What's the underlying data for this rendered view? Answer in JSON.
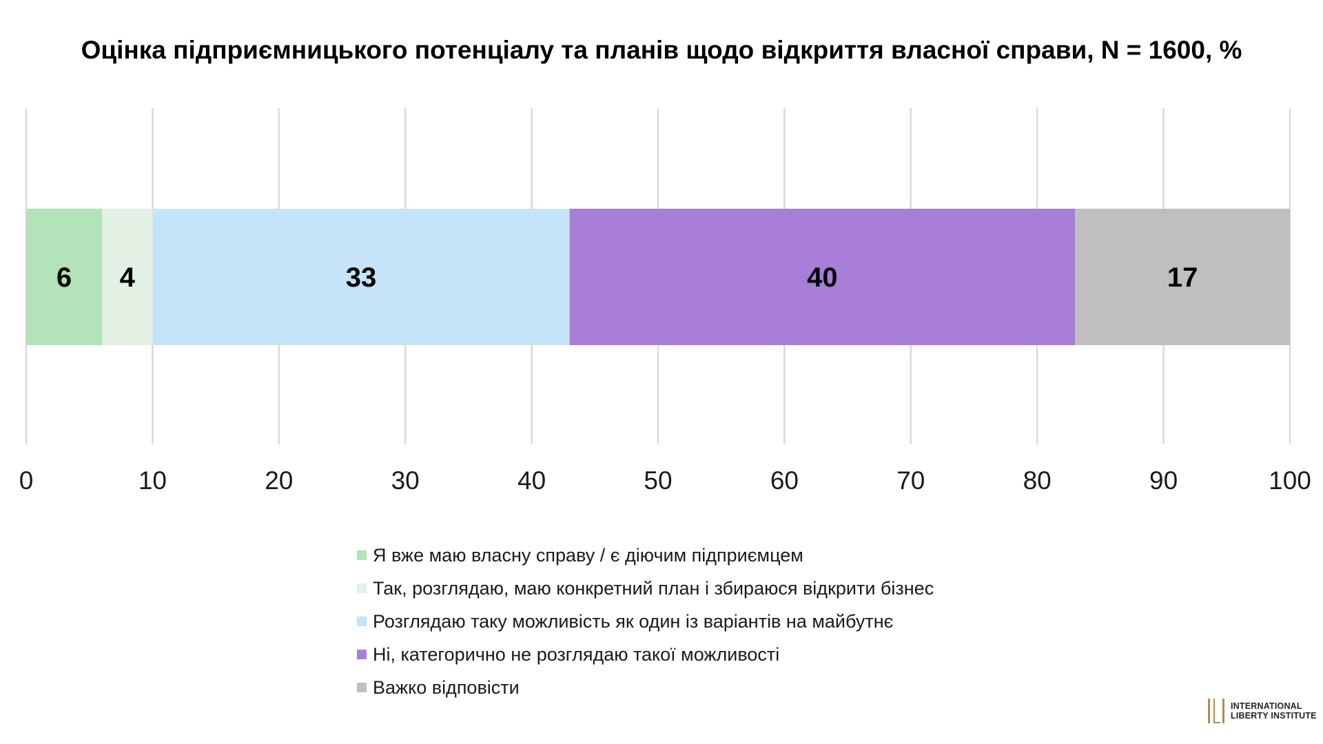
{
  "title": "Оцінка підприємницького потенціалу та планів щодо відкриття власної справи, N = 1600, %",
  "chart_data": {
    "type": "bar",
    "orientation": "horizontal-stacked",
    "title": "Оцінка підприємницького потенціалу та планів щодо відкриття власної справи, N = 1600, %",
    "xlabel": "",
    "ylabel": "",
    "xlim": [
      0,
      100
    ],
    "x_ticks": [
      0,
      10,
      20,
      30,
      40,
      50,
      60,
      70,
      80,
      90,
      100
    ],
    "grid": "vertical",
    "legend_position": "bottom",
    "series": [
      {
        "name": "Я вже маю власну справу / є діючим підприємцем",
        "values": [
          6
        ],
        "color": "#b3e3b8"
      },
      {
        "name": "Так, розглядаю, маю конкретний план і збираюся відкрити бізнес",
        "values": [
          4
        ],
        "color": "#e3f0e4"
      },
      {
        "name": "Розглядаю таку можливість як один із варіантів на майбутнє",
        "values": [
          33
        ],
        "color": "#c5e4f9"
      },
      {
        "name": "Ні, категорично не розглядаю такої можливості",
        "values": [
          40
        ],
        "color": "#a87ed8"
      },
      {
        "name": "Важко відповісти",
        "values": [
          17
        ],
        "color": "#bfbfbf"
      }
    ]
  },
  "logo": {
    "line1": "INTERNATIONAL",
    "line2": "LIBERTY INSTITUTE",
    "color": "#b08a5a"
  }
}
